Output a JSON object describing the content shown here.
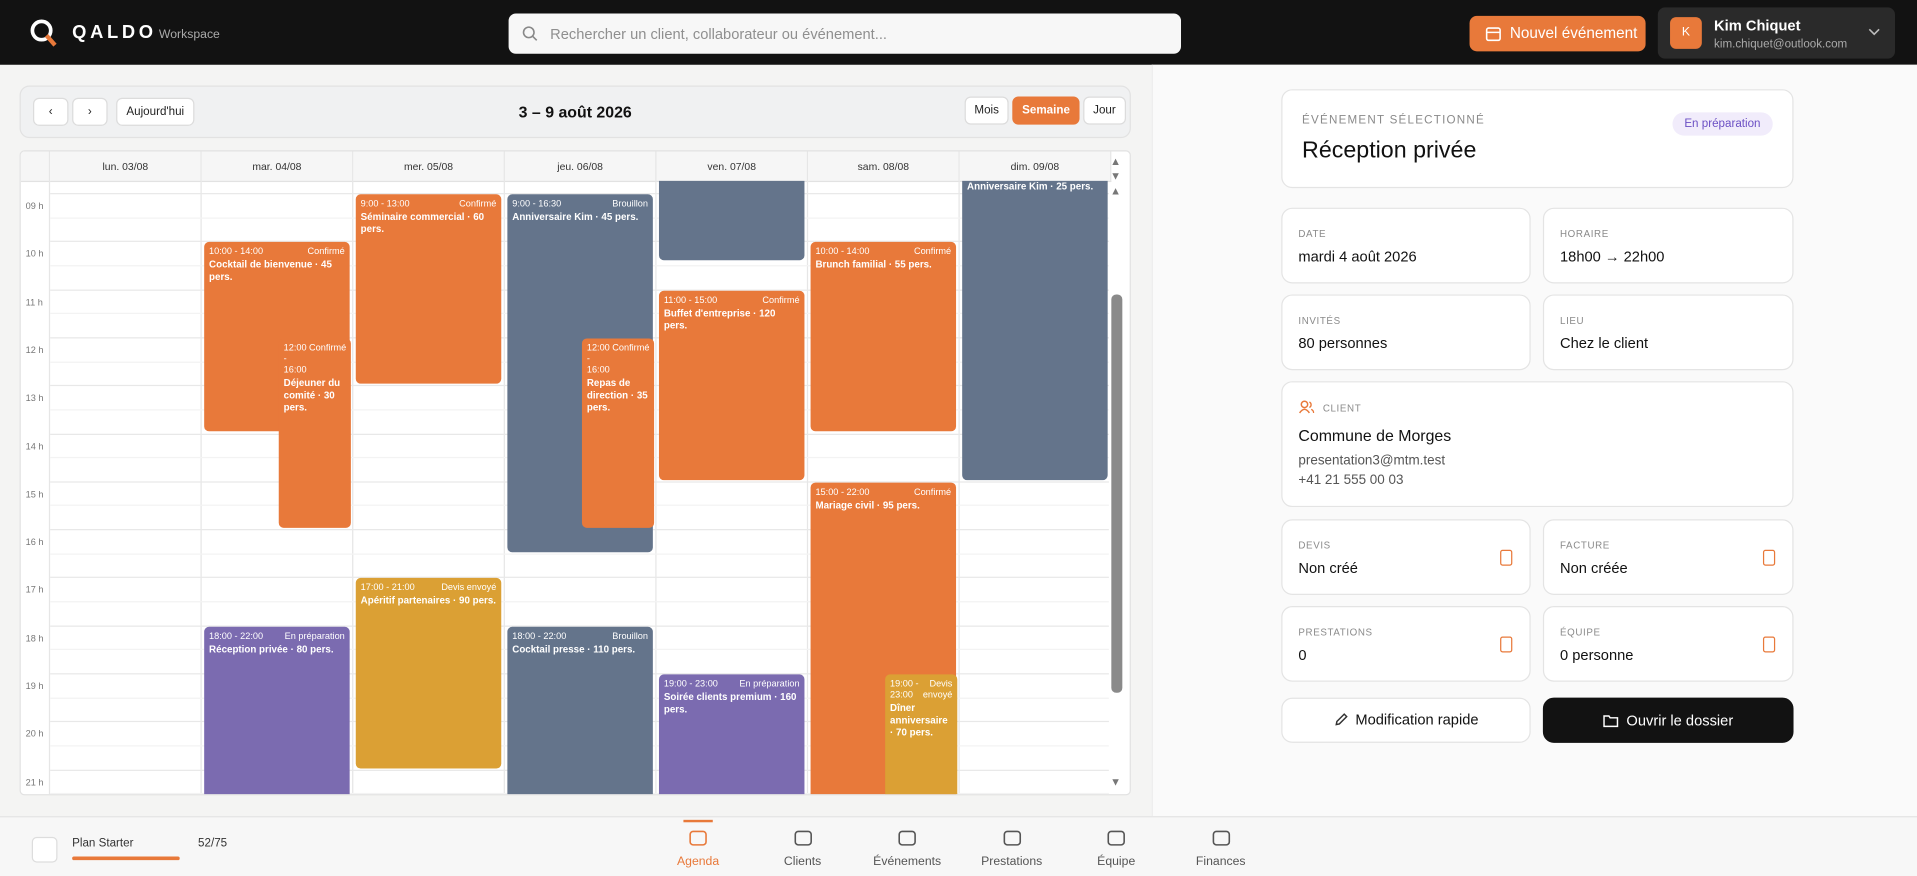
{
  "header": {
    "brand": "QALDO",
    "workspace": "Workspace",
    "search_placeholder": "Rechercher un client, collaborateur ou événement...",
    "new_event": "Nouvel événement",
    "user": {
      "initial": "K",
      "name": "Kim Chiquet",
      "email": "kim.chiquet@outlook.com"
    }
  },
  "calendar": {
    "today": "Aujourd'hui",
    "range": "3 – 9 août 2026",
    "views": [
      "Mois",
      "Semaine",
      "Jour"
    ],
    "hours": [
      "09 h",
      "10 h",
      "11 h",
      "12 h",
      "13 h",
      "14 h",
      "15 h",
      "16 h",
      "17 h",
      "18 h",
      "19 h",
      "20 h",
      "21 h"
    ],
    "days": [
      {
        "label": "lun. 03/08",
        "events": []
      },
      {
        "label": "mar. 04/08",
        "events": [
          {
            "time": "10:00 - 14:00",
            "status": "Confirmé",
            "title": "Cocktail de bienvenue · 45 pers.",
            "color": "#e8793a"
          },
          {
            "time": "12:00 - 16:00",
            "status": "Confirmé",
            "title": "Déjeuner du comité · 30 pers.",
            "color": "#e8793a"
          },
          {
            "time": "18:00 - 22:00",
            "status": "En préparation",
            "title": "Réception privée · 80 pers.",
            "color": "#7b6bb0"
          }
        ]
      },
      {
        "label": "mer. 05/08",
        "events": [
          {
            "time": "9:00 - 13:00",
            "status": "Confirmé",
            "title": "Séminaire commercial · 60 pers.",
            "color": "#e8793a"
          },
          {
            "time": "17:00 - 21:00",
            "status": "Devis envoyé",
            "title": "Apéritif partenaires · 90 pers.",
            "color": "#dba034"
          }
        ]
      },
      {
        "label": "jeu. 06/08",
        "events": [
          {
            "time": "9:00 - 16:30",
            "status": "Brouillon",
            "title": "Anniversaire Kim · 45 pers.",
            "color": "#64748b"
          },
          {
            "time": "12:00 - 16:00",
            "status": "Confirmé",
            "title": "Repas de direction · 35 pers.",
            "color": "#e8793a"
          },
          {
            "time": "18:00 - 22:00",
            "status": "Brouillon",
            "title": "Cocktail presse · 110 pers.",
            "color": "#64748b"
          }
        ]
      },
      {
        "label": "ven. 07/08",
        "events": [
          {
            "time": "11:00 - 15:00",
            "status": "Confirmé",
            "title": "Buffet d'entreprise · 120 pers.",
            "color": "#e8793a"
          },
          {
            "time": "19:00 - 23:00",
            "status": "En préparation",
            "title": "Soirée clients premium · 160 pers.",
            "color": "#7b6bb0"
          }
        ]
      },
      {
        "label": "sam. 08/08",
        "events": [
          {
            "time": "10:00 - 14:00",
            "status": "Confirmé",
            "title": "Brunch familial · 55 pers.",
            "color": "#e8793a"
          },
          {
            "time": "15:00 - 22:00",
            "status": "Confirmé",
            "title": "Mariage civil · 95 pers.",
            "color": "#e8793a"
          },
          {
            "time": "19:00 - 23:00",
            "status": "Devis envoyé",
            "title": "Dîner anniversaire · 70 pers.",
            "color": "#dba034"
          }
        ]
      },
      {
        "label": "dim. 09/08",
        "events": [
          {
            "title": "Anniversaire Kim · 25 pers.",
            "color": "#64748b"
          }
        ]
      }
    ]
  },
  "details": {
    "label": "ÉVÉNEMENT SÉLECTIONNÉ",
    "title": "Réception privée",
    "status": "En préparation",
    "fields": [
      {
        "label": "DATE",
        "value": "mardi 4 août 2026"
      },
      {
        "label": "HORAIRE",
        "value": "18h00 → 22h00"
      },
      {
        "label": "INVITÉS",
        "value": "80 personnes"
      },
      {
        "label": "LIEU",
        "value": "Chez le client"
      }
    ],
    "client": {
      "label": "CLIENT",
      "name": "Commune de Morges",
      "email": "presentation3@mtm.test",
      "phone": "+41 21 555 00 03"
    },
    "docs": [
      {
        "label": "DEVIS",
        "value": "Non créé"
      },
      {
        "label": "FACTURE",
        "value": "Non créée"
      },
      {
        "label": "PRESTATIONS",
        "value": "0"
      },
      {
        "label": "ÉQUIPE",
        "value": "0 personne"
      }
    ],
    "actions": [
      "Modification rapide",
      "Ouvrir le dossier"
    ]
  },
  "footer": {
    "plan": "Plan Starter",
    "usage": "52/75",
    "nav": [
      "Agenda",
      "Clients",
      "Événements",
      "Prestations",
      "Équipe",
      "Finances"
    ]
  }
}
